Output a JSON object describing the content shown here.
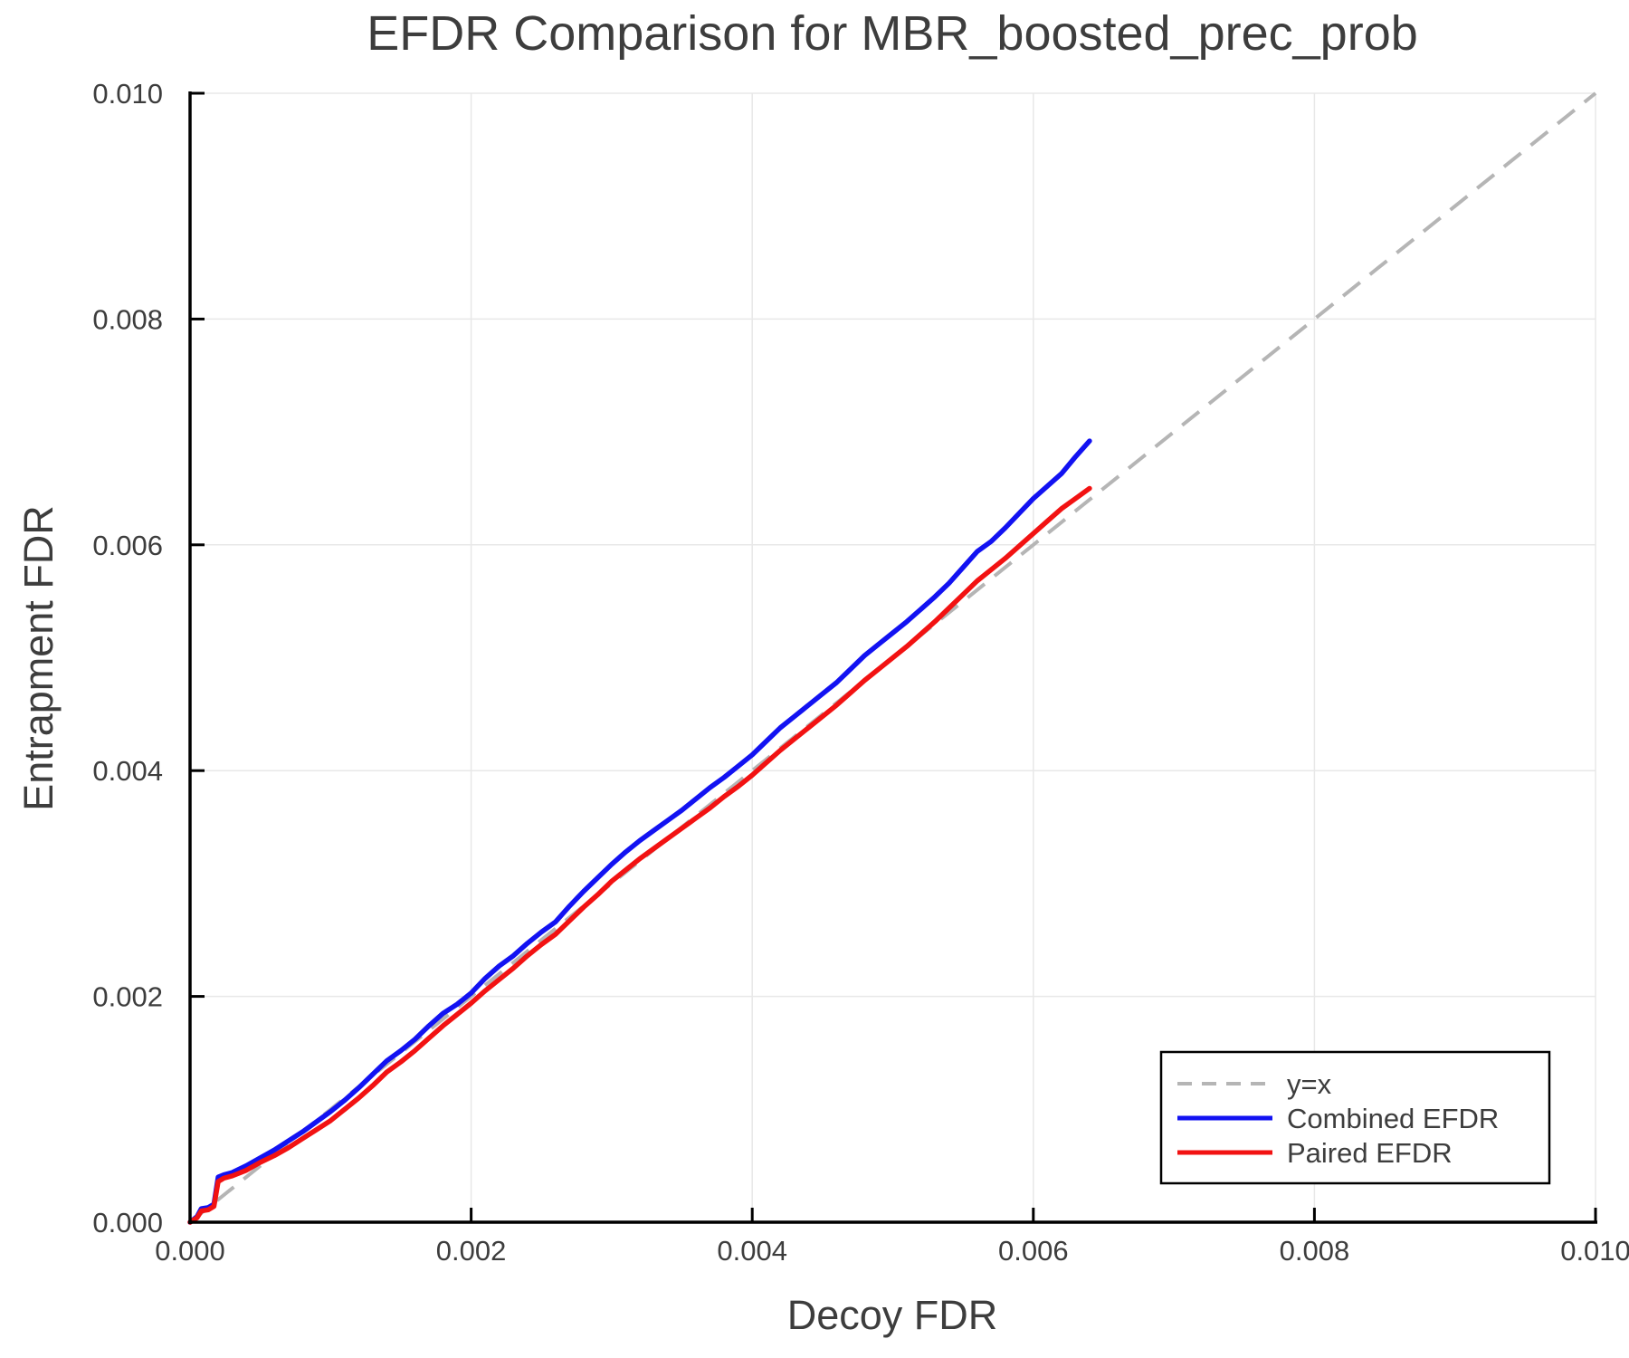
{
  "figure": {
    "title": "EFDR Comparison for MBR_boosted_prec_prob"
  },
  "colors": {
    "text": "#3d3d3d",
    "spine": "#000000",
    "grid": "#e8e8e8",
    "reference": "#b5b5b5",
    "combined": "#1212f2",
    "paired": "#f21212",
    "background": "#ffffff"
  },
  "chart_data": {
    "type": "line",
    "title": "EFDR Comparison for MBR_boosted_prec_prob",
    "xlabel": "Decoy FDR",
    "ylabel": "Entrapment FDR",
    "xlim": [
      0.0,
      0.01
    ],
    "ylim": [
      0.0,
      0.01
    ],
    "grid": true,
    "legend_position": "lower right",
    "xticks": {
      "values": [
        0.0,
        0.002,
        0.004,
        0.006,
        0.008,
        0.01
      ],
      "labels": [
        "0.000",
        "0.002",
        "0.004",
        "0.006",
        "0.008",
        "0.010"
      ]
    },
    "yticks": {
      "values": [
        0.0,
        0.002,
        0.004,
        0.006,
        0.008,
        0.01
      ],
      "labels": [
        "0.000",
        "0.002",
        "0.004",
        "0.006",
        "0.008",
        "0.010"
      ]
    },
    "reference_line": {
      "label": "y=x",
      "style": "dashed",
      "color": "#b5b5b5",
      "points": [
        [
          0.0,
          0.0
        ],
        [
          0.01,
          0.01
        ]
      ]
    },
    "series": [
      {
        "name": "Combined EFDR",
        "color": "#1212f2",
        "points": [
          [
            0,
            0
          ],
          [
            5e-05,
            5e-05
          ],
          [
            8e-05,
            0.00012
          ],
          [
            0.00013,
            0.00013
          ],
          [
            0.00017,
            0.00016
          ],
          [
            0.0002,
            0.0004
          ],
          [
            0.00024,
            0.00042
          ],
          [
            0.0003,
            0.00044
          ],
          [
            0.0004,
            0.0005
          ],
          [
            0.0005,
            0.00057
          ],
          [
            0.0006,
            0.00064
          ],
          [
            0.0007,
            0.00072
          ],
          [
            0.0008,
            0.0008
          ],
          [
            0.0009,
            0.00089
          ],
          [
            0.001,
            0.00098
          ],
          [
            0.0011,
            0.00108
          ],
          [
            0.0012,
            0.00119
          ],
          [
            0.0013,
            0.00131
          ],
          [
            0.0014,
            0.00143
          ],
          [
            0.0015,
            0.00152
          ],
          [
            0.0016,
            0.00162
          ],
          [
            0.0017,
            0.00174
          ],
          [
            0.0018,
            0.00185
          ],
          [
            0.0019,
            0.00193
          ],
          [
            0.002,
            0.00203
          ],
          [
            0.0021,
            0.00216
          ],
          [
            0.0022,
            0.00227
          ],
          [
            0.0023,
            0.00236
          ],
          [
            0.0024,
            0.00247
          ],
          [
            0.0025,
            0.00257
          ],
          [
            0.0026,
            0.00266
          ],
          [
            0.0027,
            0.0028
          ],
          [
            0.0028,
            0.00293
          ],
          [
            0.0029,
            0.00305
          ],
          [
            0.003,
            0.00317
          ],
          [
            0.0031,
            0.00328
          ],
          [
            0.0032,
            0.00338
          ],
          [
            0.0033,
            0.00347
          ],
          [
            0.0034,
            0.00356
          ],
          [
            0.0035,
            0.00365
          ],
          [
            0.0036,
            0.00375
          ],
          [
            0.0037,
            0.00385
          ],
          [
            0.0038,
            0.00394
          ],
          [
            0.0039,
            0.00404
          ],
          [
            0.004,
            0.00414
          ],
          [
            0.0041,
            0.00426
          ],
          [
            0.0042,
            0.00438
          ],
          [
            0.0043,
            0.00448
          ],
          [
            0.0044,
            0.00458
          ],
          [
            0.0045,
            0.00468
          ],
          [
            0.0046,
            0.00478
          ],
          [
            0.0047,
            0.0049
          ],
          [
            0.0048,
            0.00502
          ],
          [
            0.0049,
            0.00512
          ],
          [
            0.005,
            0.00522
          ],
          [
            0.0051,
            0.00532
          ],
          [
            0.0052,
            0.00543
          ],
          [
            0.0053,
            0.00554
          ],
          [
            0.0054,
            0.00566
          ],
          [
            0.0055,
            0.0058
          ],
          [
            0.0056,
            0.00594
          ],
          [
            0.0057,
            0.00603
          ],
          [
            0.0058,
            0.00615
          ],
          [
            0.0059,
            0.00628
          ],
          [
            0.006,
            0.00641
          ],
          [
            0.0061,
            0.00652
          ],
          [
            0.0062,
            0.00663
          ],
          [
            0.0063,
            0.00678
          ],
          [
            0.0064,
            0.00692
          ]
        ]
      },
      {
        "name": "Paired EFDR",
        "color": "#f21212",
        "points": [
          [
            0,
            0
          ],
          [
            5e-05,
            4e-05
          ],
          [
            8e-05,
            0.0001
          ],
          [
            0.00013,
            0.00011
          ],
          [
            0.00017,
            0.00014
          ],
          [
            0.0002,
            0.00036
          ],
          [
            0.00024,
            0.00039
          ],
          [
            0.0003,
            0.00041
          ],
          [
            0.0004,
            0.00046
          ],
          [
            0.0005,
            0.00053
          ],
          [
            0.0006,
            0.00059
          ],
          [
            0.0007,
            0.00066
          ],
          [
            0.0008,
            0.00074
          ],
          [
            0.0009,
            0.00082
          ],
          [
            0.001,
            0.0009
          ],
          [
            0.0011,
            0.001
          ],
          [
            0.0012,
            0.0011
          ],
          [
            0.0013,
            0.00121
          ],
          [
            0.0014,
            0.00133
          ],
          [
            0.0015,
            0.00142
          ],
          [
            0.0016,
            0.00152
          ],
          [
            0.0017,
            0.00163
          ],
          [
            0.0018,
            0.00174
          ],
          [
            0.0019,
            0.00184
          ],
          [
            0.002,
            0.00194
          ],
          [
            0.0021,
            0.00205
          ],
          [
            0.0022,
            0.00215
          ],
          [
            0.0023,
            0.00225
          ],
          [
            0.0024,
            0.00236
          ],
          [
            0.0025,
            0.00246
          ],
          [
            0.0026,
            0.00255
          ],
          [
            0.0027,
            0.00267
          ],
          [
            0.0028,
            0.00279
          ],
          [
            0.0029,
            0.0029
          ],
          [
            0.003,
            0.00302
          ],
          [
            0.0031,
            0.00312
          ],
          [
            0.0032,
            0.00322
          ],
          [
            0.0033,
            0.00331
          ],
          [
            0.0034,
            0.0034
          ],
          [
            0.0035,
            0.00349
          ],
          [
            0.0036,
            0.00358
          ],
          [
            0.0037,
            0.00367
          ],
          [
            0.0038,
            0.00377
          ],
          [
            0.0039,
            0.00386
          ],
          [
            0.004,
            0.00396
          ],
          [
            0.0041,
            0.00407
          ],
          [
            0.0042,
            0.00418
          ],
          [
            0.0043,
            0.00428
          ],
          [
            0.0044,
            0.00438
          ],
          [
            0.0045,
            0.00448
          ],
          [
            0.0046,
            0.00458
          ],
          [
            0.0047,
            0.00469
          ],
          [
            0.0048,
            0.0048
          ],
          [
            0.0049,
            0.0049
          ],
          [
            0.005,
            0.005
          ],
          [
            0.0051,
            0.0051
          ],
          [
            0.0052,
            0.00521
          ],
          [
            0.0053,
            0.00532
          ],
          [
            0.0054,
            0.00544
          ],
          [
            0.0055,
            0.00556
          ],
          [
            0.0056,
            0.00568
          ],
          [
            0.0057,
            0.00578
          ],
          [
            0.0058,
            0.00588
          ],
          [
            0.0059,
            0.00599
          ],
          [
            0.006,
            0.0061
          ],
          [
            0.0061,
            0.00621
          ],
          [
            0.0062,
            0.00632
          ],
          [
            0.0063,
            0.00641
          ],
          [
            0.0064,
            0.0065
          ]
        ]
      }
    ],
    "legend": {
      "entries": [
        {
          "label": "y=x",
          "color": "#b5b5b5",
          "style": "dashed"
        },
        {
          "label": "Combined EFDR",
          "color": "#1212f2",
          "style": "solid"
        },
        {
          "label": "Paired EFDR",
          "color": "#f21212",
          "style": "solid"
        }
      ]
    }
  }
}
